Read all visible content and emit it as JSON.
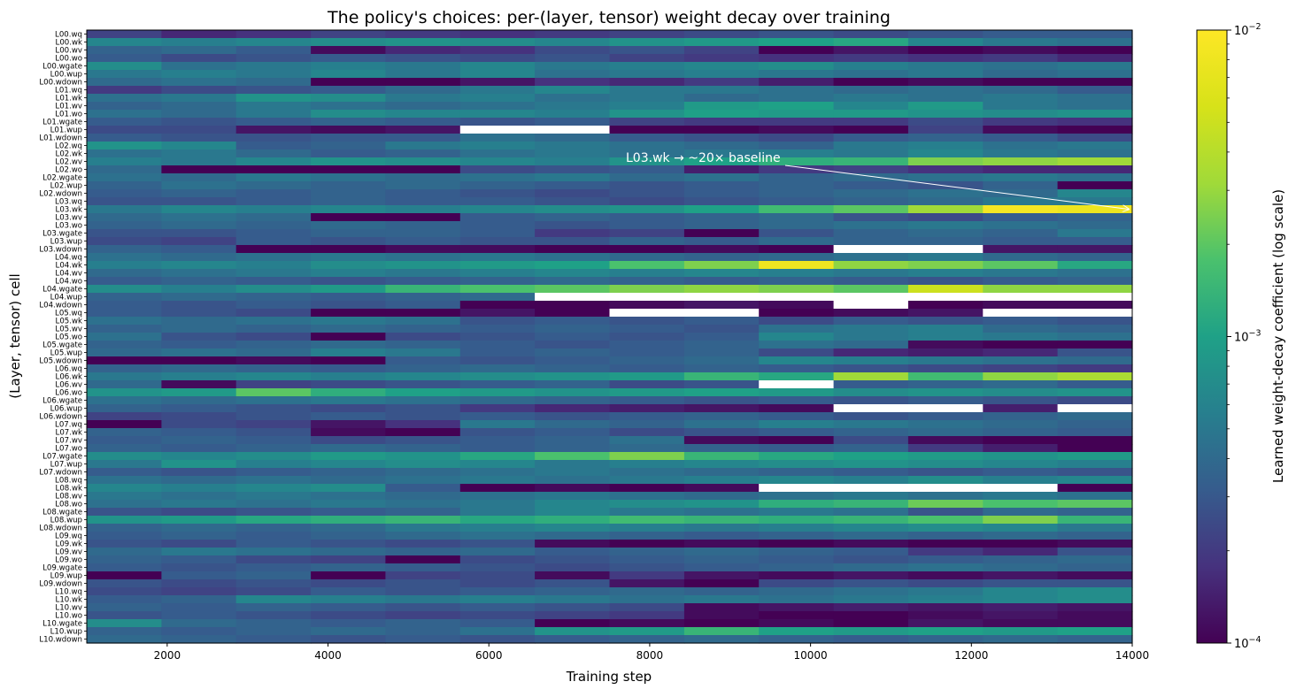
{
  "chart_data": {
    "type": "heatmap",
    "title": "The policy's choices: per-(layer, tensor) weight decay over training",
    "xlabel": "Training step",
    "ylabel": "(Layer, tensor) cell",
    "xlim": [
      1000,
      14000
    ],
    "x_ticks": [
      2000,
      4000,
      6000,
      8000,
      10000,
      12000,
      14000
    ],
    "x_bins": [
      1000,
      1929,
      2857,
      3786,
      4714,
      5643,
      6571,
      7500,
      8429,
      9357,
      10286,
      11214,
      12143,
      13071,
      14000
    ],
    "rows": [
      "L00.wq",
      "L00.wk",
      "L00.wv",
      "L00.wo",
      "L00.wgate",
      "L00.wup",
      "L00.wdown",
      "L01.wq",
      "L01.wk",
      "L01.wv",
      "L01.wo",
      "L01.wgate",
      "L01.wup",
      "L01.wdown",
      "L02.wq",
      "L02.wk",
      "L02.wv",
      "L02.wo",
      "L02.wgate",
      "L02.wup",
      "L02.wdown",
      "L03.wq",
      "L03.wk",
      "L03.wv",
      "L03.wo",
      "L03.wgate",
      "L03.wup",
      "L03.wdown",
      "L04.wq",
      "L04.wk",
      "L04.wv",
      "L04.wo",
      "L04.wgate",
      "L04.wup",
      "L04.wdown",
      "L05.wq",
      "L05.wk",
      "L05.wv",
      "L05.wo",
      "L05.wgate",
      "L05.wup",
      "L05.wdown",
      "L06.wq",
      "L06.wk",
      "L06.wv",
      "L06.wo",
      "L06.wgate",
      "L06.wup",
      "L06.wdown",
      "L07.wq",
      "L07.wk",
      "L07.wv",
      "L07.wo",
      "L07.wgate",
      "L07.wup",
      "L07.wdown",
      "L08.wq",
      "L08.wk",
      "L08.wv",
      "L08.wo",
      "L08.wgate",
      "L08.wup",
      "L08.wdown",
      "L09.wq",
      "L09.wk",
      "L09.wv",
      "L09.wo",
      "L09.wgate",
      "L09.wup",
      "L09.wdown",
      "L10.wq",
      "L10.wk",
      "L10.wv",
      "L10.wo",
      "L10.wgate",
      "L10.wup",
      "L10.wdown"
    ],
    "values_log10": [
      [
        -3.65,
        -3.8,
        -3.75,
        -3.65,
        -3.7,
        -3.75,
        -3.7,
        -3.65,
        -3.6,
        -3.55,
        -3.6,
        -3.55,
        -3.5,
        -3.5
      ],
      [
        -3.2,
        -3.25,
        -3.2,
        -3.15,
        -3.1,
        -3.15,
        -3.2,
        -3.1,
        -3.05,
        -3.0,
        -2.95,
        -3.2,
        -3.3,
        -3.35
      ],
      [
        -3.45,
        -3.4,
        -3.5,
        -3.95,
        -3.8,
        -3.75,
        -3.6,
        -3.55,
        -3.65,
        -4.0,
        -3.9,
        -4.0,
        -3.95,
        -4.0
      ],
      [
        -3.5,
        -3.6,
        -3.55,
        -3.5,
        -3.55,
        -3.6,
        -3.55,
        -3.65,
        -3.7,
        -3.75,
        -3.7,
        -3.75,
        -3.7,
        -3.8
      ],
      [
        -3.15,
        -3.35,
        -3.3,
        -3.25,
        -3.3,
        -3.2,
        -3.3,
        -3.25,
        -3.2,
        -3.15,
        -3.25,
        -3.3,
        -3.35,
        -3.3
      ],
      [
        -3.3,
        -3.25,
        -3.3,
        -3.2,
        -3.3,
        -3.2,
        -3.35,
        -3.3,
        -3.25,
        -3.3,
        -3.35,
        -3.3,
        -3.4,
        -3.35
      ],
      [
        -3.4,
        -3.35,
        -3.4,
        -4.0,
        -4.0,
        -3.9,
        -3.75,
        -3.8,
        -3.7,
        -3.85,
        -4.0,
        -3.95,
        -4.0,
        -4.0
      ],
      [
        -3.7,
        -3.6,
        -3.55,
        -3.5,
        -3.4,
        -3.3,
        -3.2,
        -3.3,
        -3.3,
        -3.35,
        -3.4,
        -3.35,
        -3.4,
        -3.5
      ],
      [
        -3.35,
        -3.3,
        -3.1,
        -3.15,
        -3.3,
        -3.25,
        -3.35,
        -3.3,
        -3.4,
        -3.35,
        -3.3,
        -3.35,
        -3.3,
        -3.35
      ],
      [
        -3.45,
        -3.4,
        -3.3,
        -3.35,
        -3.4,
        -3.35,
        -3.3,
        -3.25,
        -3.05,
        -3.0,
        -3.2,
        -3.05,
        -3.3,
        -3.35
      ],
      [
        -3.35,
        -3.4,
        -3.3,
        -3.15,
        -3.2,
        -3.2,
        -3.25,
        -3.1,
        -3.0,
        -3.05,
        -3.05,
        -3.1,
        -3.15,
        -3.1
      ],
      [
        -3.5,
        -3.55,
        -3.5,
        -3.45,
        -3.5,
        -3.55,
        -3.5,
        -3.65,
        -3.7,
        -3.7,
        -3.7,
        -3.6,
        -3.7,
        -3.75
      ],
      [
        -3.6,
        -3.6,
        -3.9,
        -3.95,
        -3.9,
        null,
        null,
        -4.0,
        -4.0,
        -3.95,
        -4.0,
        -3.65,
        -3.95,
        -4.0
      ],
      [
        -3.5,
        -3.55,
        -3.55,
        -3.5,
        -3.5,
        -3.35,
        -3.4,
        -3.5,
        -3.55,
        -3.6,
        -3.5,
        -3.45,
        -3.5,
        -3.6
      ],
      [
        -3.1,
        -3.2,
        -3.5,
        -3.45,
        -3.3,
        -3.25,
        -3.3,
        -3.35,
        -3.4,
        -3.45,
        -3.3,
        -3.25,
        -3.35,
        -3.3
      ],
      [
        -3.35,
        -3.3,
        -3.4,
        -3.5,
        -3.45,
        -3.35,
        -3.3,
        -3.35,
        -3.3,
        -3.25,
        -3.3,
        -3.2,
        -3.3,
        -3.35
      ],
      [
        -3.25,
        -3.3,
        -3.2,
        -3.1,
        -3.15,
        -3.2,
        -3.25,
        -3.1,
        -3.0,
        -2.9,
        -2.85,
        -2.6,
        -2.55,
        -2.5
      ],
      [
        -3.4,
        -4.0,
        -4.0,
        -4.0,
        -4.0,
        -3.6,
        -3.55,
        -3.5,
        -3.85,
        -3.7,
        -3.65,
        -3.75,
        -3.8,
        -3.8
      ],
      [
        -3.35,
        -3.4,
        -3.3,
        -3.35,
        -3.4,
        -3.35,
        -3.3,
        -3.4,
        -3.35,
        -3.45,
        -3.4,
        -3.35,
        -3.3,
        -3.35
      ],
      [
        -3.45,
        -3.35,
        -3.4,
        -3.45,
        -3.4,
        -3.45,
        -3.5,
        -3.55,
        -3.5,
        -3.45,
        -3.5,
        -3.55,
        -3.45,
        -4.0
      ],
      [
        -3.5,
        -3.45,
        -3.5,
        -3.45,
        -3.5,
        -3.55,
        -3.6,
        -3.55,
        -3.5,
        -3.45,
        -3.4,
        -3.35,
        -3.4,
        -3.2
      ],
      [
        -3.55,
        -3.55,
        -3.5,
        -3.45,
        -3.5,
        -3.5,
        -3.55,
        -3.6,
        -3.55,
        -3.5,
        -3.45,
        -3.4,
        -3.3,
        -3.3
      ],
      [
        -3.3,
        -3.2,
        -3.25,
        -3.2,
        -3.25,
        -3.2,
        -3.15,
        -3.1,
        -3.0,
        -2.8,
        -2.7,
        -2.5,
        -2.05,
        -2.1
      ],
      [
        -3.4,
        -3.35,
        -3.4,
        -4.0,
        -4.0,
        -3.5,
        -3.45,
        -3.5,
        -3.45,
        -3.4,
        -3.55,
        -3.6,
        -3.5,
        -3.45
      ],
      [
        -3.45,
        -3.4,
        -3.45,
        -3.4,
        -3.45,
        -3.5,
        -3.55,
        -3.5,
        -3.45,
        -3.4,
        -3.35,
        -3.3,
        -3.35,
        -3.4
      ],
      [
        -3.55,
        -3.55,
        -3.5,
        -3.45,
        -3.45,
        -3.5,
        -3.7,
        -3.65,
        -4.0,
        -3.55,
        -3.45,
        -3.4,
        -3.45,
        -3.3
      ],
      [
        -3.6,
        -3.65,
        -3.5,
        -3.55,
        -3.5,
        -3.55,
        -3.55,
        -3.45,
        -3.5,
        -3.4,
        -3.45,
        -3.45,
        -3.5,
        -3.5
      ],
      [
        -3.45,
        -3.5,
        -4.0,
        -4.0,
        -3.95,
        -3.95,
        -4.0,
        -4.0,
        -3.95,
        -4.0,
        null,
        null,
        -3.9,
        -3.9
      ],
      [
        -3.35,
        -3.4,
        -3.35,
        -3.3,
        -3.35,
        -3.3,
        -3.35,
        -3.4,
        -3.45,
        -3.4,
        -3.35,
        -3.3,
        -3.4,
        -3.45
      ],
      [
        -3.25,
        -3.2,
        -3.25,
        -3.15,
        -3.1,
        -3.05,
        -3.0,
        -2.75,
        -2.6,
        -2.1,
        -2.55,
        -2.6,
        -2.7,
        -2.95
      ],
      [
        -3.4,
        -3.35,
        -3.3,
        -3.25,
        -3.3,
        -3.25,
        -3.2,
        -3.25,
        -3.2,
        -3.25,
        -3.3,
        -3.25,
        -3.3,
        -3.35
      ],
      [
        -3.5,
        -3.45,
        -3.5,
        -3.55,
        -3.5,
        -3.45,
        -3.4,
        -3.45,
        -3.5,
        -3.45,
        -3.5,
        -3.55,
        -3.5,
        -3.45
      ],
      [
        -3.15,
        -3.25,
        -3.15,
        -3.05,
        -2.85,
        -2.75,
        -2.7,
        -2.6,
        -2.55,
        -2.6,
        -2.7,
        -2.3,
        -2.55,
        -2.55
      ],
      [
        -3.45,
        -3.4,
        -3.45,
        -3.5,
        -3.45,
        -3.4,
        null,
        null,
        null,
        null,
        null,
        null,
        null,
        null
      ],
      [
        -3.5,
        -3.55,
        -3.5,
        -3.55,
        -3.5,
        -4.0,
        -4.0,
        -3.95,
        -3.9,
        -3.95,
        null,
        -4.0,
        -3.95,
        -3.95
      ],
      [
        -3.5,
        -3.55,
        -3.6,
        -4.0,
        -4.0,
        -3.9,
        -4.0,
        null,
        null,
        -4.0,
        -3.95,
        -3.9,
        null,
        null
      ],
      [
        -3.35,
        -3.4,
        -3.35,
        -3.3,
        -3.35,
        -3.55,
        -3.5,
        -3.55,
        -3.5,
        -3.6,
        -3.5,
        -3.55,
        -3.5,
        -3.55
      ],
      [
        -3.45,
        -3.4,
        -3.45,
        -3.4,
        -3.45,
        -3.5,
        -3.45,
        -3.5,
        -3.55,
        -3.35,
        -3.3,
        -3.25,
        -3.4,
        -3.45
      ],
      [
        -3.35,
        -3.55,
        -3.6,
        -4.0,
        -3.6,
        -3.55,
        -3.5,
        -3.55,
        -3.5,
        -3.2,
        -3.3,
        -3.25,
        -3.3,
        -3.35
      ],
      [
        -3.45,
        -3.5,
        -3.45,
        -3.4,
        -3.45,
        -3.5,
        -3.55,
        -3.5,
        -3.45,
        -3.35,
        -3.4,
        -3.95,
        -4.0,
        -4.0
      ],
      [
        -3.4,
        -3.35,
        -3.4,
        -3.25,
        -3.3,
        -3.5,
        -3.45,
        -3.5,
        -3.45,
        -3.6,
        -3.8,
        -3.85,
        -3.8,
        -3.55
      ],
      [
        -4.0,
        -4.0,
        -3.95,
        -4.0,
        -3.5,
        -3.55,
        -3.5,
        -3.45,
        -3.4,
        -3.2,
        -3.25,
        -3.3,
        -3.35,
        -3.4
      ],
      [
        -3.45,
        -3.4,
        -3.45,
        -3.5,
        -3.45,
        -3.4,
        -3.45,
        -3.5,
        -3.45,
        -3.5,
        -3.55,
        -3.6,
        -3.65,
        -3.7
      ],
      [
        -3.3,
        -3.25,
        -3.2,
        -3.25,
        -3.2,
        -3.15,
        -3.1,
        -3.05,
        -2.85,
        -2.95,
        -2.5,
        -2.8,
        -2.55,
        -2.45
      ],
      [
        -3.4,
        -3.95,
        -3.65,
        -3.6,
        -3.55,
        -3.5,
        -3.45,
        -3.6,
        -3.55,
        null,
        -3.5,
        -3.45,
        -3.4,
        -3.5
      ],
      [
        -3.1,
        -3.05,
        -2.7,
        -2.9,
        -3.0,
        -3.05,
        -3.1,
        -3.05,
        -3.0,
        -3.05,
        -3.15,
        -3.1,
        -3.15,
        -3.1
      ],
      [
        -3.35,
        -3.4,
        -3.35,
        -3.3,
        -3.35,
        -3.4,
        -3.45,
        -3.5,
        -3.55,
        -3.5,
        -3.55,
        -3.5,
        -3.55,
        -3.6
      ],
      [
        -3.45,
        -3.5,
        -3.55,
        -3.6,
        -3.55,
        -3.7,
        -3.8,
        -3.85,
        -3.9,
        -3.95,
        null,
        null,
        -3.85,
        null
      ],
      [
        -3.65,
        -3.6,
        -3.55,
        -3.5,
        -3.55,
        -3.5,
        -3.55,
        -3.5,
        -3.45,
        -3.5,
        -3.55,
        -3.5,
        -3.45,
        -3.4
      ],
      [
        -4.0,
        -3.6,
        -3.65,
        -3.9,
        -3.75,
        -3.3,
        -3.4,
        -3.45,
        -3.35,
        -3.25,
        -3.3,
        -3.35,
        -3.4,
        -3.45
      ],
      [
        -3.45,
        -3.5,
        -3.55,
        -3.95,
        -4.0,
        -3.55,
        -3.5,
        -3.6,
        -3.55,
        -3.5,
        -3.45,
        -3.4,
        -3.45,
        -3.5
      ],
      [
        -3.5,
        -3.45,
        -3.5,
        -3.6,
        -3.55,
        -3.5,
        -3.45,
        -3.35,
        -3.95,
        -4.0,
        -3.6,
        -3.95,
        -4.0,
        -4.0
      ],
      [
        -3.45,
        -3.5,
        -3.45,
        -3.4,
        -3.45,
        -3.5,
        -3.45,
        -3.4,
        -3.45,
        -3.5,
        -3.45,
        -3.7,
        -3.85,
        -4.0
      ],
      [
        -3.15,
        -3.2,
        -3.15,
        -3.05,
        -3.1,
        -2.95,
        -2.75,
        -2.6,
        -2.85,
        -2.95,
        -3.0,
        -3.05,
        -3.1,
        -3.05
      ],
      [
        -3.3,
        -3.1,
        -3.25,
        -3.2,
        -3.15,
        -3.2,
        -3.3,
        -3.25,
        -3.2,
        -3.15,
        -3.1,
        -3.15,
        -3.2,
        -3.25
      ],
      [
        -3.5,
        -3.55,
        -3.5,
        -3.45,
        -3.4,
        -3.35,
        -3.3,
        -3.35,
        -3.4,
        -3.45,
        -3.5,
        -3.55,
        -3.5,
        -3.55
      ],
      [
        -3.35,
        -3.4,
        -3.35,
        -3.4,
        -3.35,
        -3.3,
        -3.35,
        -3.3,
        -3.25,
        -3.2,
        -3.25,
        -3.15,
        -3.25,
        -3.2
      ],
      [
        -3.2,
        -3.25,
        -3.2,
        -3.15,
        -3.5,
        -4.0,
        -3.95,
        -4.0,
        -3.95,
        null,
        null,
        null,
        null,
        -4.0
      ],
      [
        -3.3,
        -3.35,
        -3.3,
        -3.35,
        -3.4,
        -3.35,
        -3.3,
        -3.35,
        -3.4,
        -3.35,
        -3.3,
        -3.35,
        -3.3,
        -3.35
      ],
      [
        -3.35,
        -3.3,
        -3.35,
        -3.3,
        -3.35,
        -3.3,
        -3.2,
        -3.15,
        -3.1,
        -2.9,
        -2.85,
        -2.65,
        -2.75,
        -2.7
      ],
      [
        -3.55,
        -3.6,
        -3.55,
        -3.5,
        -3.45,
        -3.3,
        -3.2,
        -3.3,
        -3.35,
        -3.3,
        -3.35,
        -3.55,
        -3.4,
        -3.45
      ],
      [
        -3.1,
        -3.05,
        -2.95,
        -2.9,
        -2.85,
        -2.95,
        -2.9,
        -2.8,
        -2.85,
        -2.9,
        -2.85,
        -2.75,
        -2.6,
        -2.85
      ],
      [
        -3.45,
        -3.4,
        -3.45,
        -3.4,
        -3.3,
        -3.25,
        -3.2,
        -3.25,
        -3.3,
        -3.25,
        -3.2,
        -3.15,
        -3.2,
        -3.3
      ],
      [
        -3.5,
        -3.45,
        -3.5,
        -3.45,
        -3.4,
        -3.35,
        -3.4,
        -3.45,
        -3.5,
        -3.45,
        -3.4,
        -3.45,
        -3.4,
        -3.45
      ],
      [
        -3.55,
        -3.6,
        -3.5,
        -3.55,
        -3.6,
        -3.55,
        -3.95,
        -4.0,
        -3.95,
        -4.0,
        -3.95,
        -4.0,
        -4.0,
        -3.95
      ],
      [
        -3.4,
        -3.3,
        -3.35,
        -3.4,
        -3.45,
        -3.4,
        -3.5,
        -3.45,
        -3.4,
        -3.45,
        -3.5,
        -3.7,
        -3.8,
        -3.55
      ],
      [
        -3.45,
        -3.5,
        -3.6,
        -3.65,
        -4.0,
        -3.6,
        -3.55,
        -3.5,
        -3.45,
        -3.5,
        -3.55,
        -3.5,
        -3.45,
        -3.4
      ],
      [
        -3.5,
        -3.55,
        -3.5,
        -3.45,
        -3.5,
        -3.55,
        -3.6,
        -3.55,
        -3.5,
        -3.45,
        -3.4,
        -3.35,
        -3.4,
        -3.45
      ],
      [
        -4.0,
        -3.5,
        -3.45,
        -4.0,
        -3.65,
        -3.6,
        -3.95,
        -3.7,
        -3.9,
        -3.95,
        -3.9,
        -3.95,
        -3.9,
        -3.95
      ],
      [
        -3.55,
        -3.6,
        -3.55,
        -3.6,
        -3.55,
        -3.6,
        -3.55,
        -3.9,
        -4.0,
        -3.6,
        -3.55,
        -3.6,
        -3.55,
        -3.55
      ],
      [
        -3.6,
        -3.65,
        -3.6,
        -3.5,
        -3.55,
        -3.5,
        -3.45,
        -3.4,
        -3.45,
        -3.4,
        -3.35,
        -3.3,
        -3.2,
        -3.15
      ],
      [
        -3.5,
        -3.45,
        -3.2,
        -3.25,
        -3.3,
        -3.25,
        -3.3,
        -3.35,
        -3.3,
        -3.35,
        -3.3,
        -3.25,
        -3.2,
        -3.15
      ],
      [
        -3.45,
        -3.5,
        -3.45,
        -3.5,
        -3.55,
        -3.5,
        -3.55,
        -3.6,
        -3.95,
        -3.9,
        -3.85,
        -3.9,
        -3.85,
        -3.9
      ],
      [
        -3.55,
        -3.5,
        -3.55,
        -3.6,
        -3.65,
        -3.6,
        -3.65,
        -3.7,
        -3.95,
        -4.0,
        -4.0,
        -3.95,
        -3.9,
        -3.95
      ],
      [
        -3.15,
        -3.4,
        -3.45,
        -3.5,
        -3.45,
        -3.5,
        -4.0,
        -3.95,
        -4.0,
        -3.95,
        -4.0,
        -3.9,
        -3.95,
        -3.95
      ],
      [
        -3.45,
        -3.5,
        -3.45,
        -3.4,
        -3.45,
        -3.35,
        -3.1,
        -3.05,
        -2.85,
        -3.0,
        -3.05,
        -3.0,
        -3.05,
        -3.0
      ],
      [
        -3.4,
        -3.45,
        -3.5,
        -3.55,
        -3.5,
        -3.55,
        -3.5,
        -3.45,
        -3.4,
        -3.45,
        -3.5,
        -3.45,
        -3.4,
        -3.45
      ]
    ],
    "missing_value_color": "#ffffff",
    "colormap": "viridis",
    "colorbar": {
      "label": "Learned weight-decay coefficient (log scale)",
      "scale": "log",
      "min": 0.0001,
      "max": 0.01,
      "tick_base": "10",
      "tick_exponents": [
        "−4",
        "−3",
        "−2"
      ]
    },
    "annotation": {
      "text": "L03.wk → ~20× baseline",
      "points_to_row": "L03.wk",
      "points_to_x": 14000
    }
  }
}
